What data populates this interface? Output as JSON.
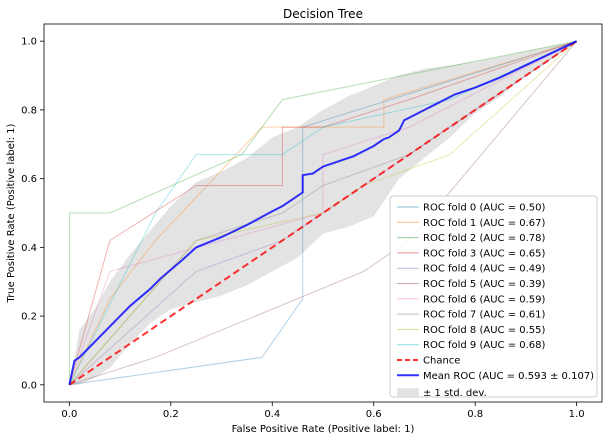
{
  "chart_data": {
    "type": "line",
    "title": "Decision Tree",
    "xlabel": "False Positive Rate (Positive label: 1)",
    "ylabel": "True Positive Rate (Positive label: 1)",
    "xlim": [
      -0.05,
      1.05
    ],
    "ylim": [
      -0.05,
      1.05
    ],
    "xticks": [
      "0.0",
      "0.2",
      "0.4",
      "0.6",
      "0.8",
      "1.0"
    ],
    "yticks": [
      "0.0",
      "0.2",
      "0.4",
      "0.6",
      "0.8",
      "1.0"
    ],
    "grid": false,
    "legend_position": "lower-right",
    "series": [
      {
        "name": "ROC fold 0 (AUC = 0.50)",
        "color": "#1f77b4",
        "x": [
          0,
          0.38,
          0.46,
          0.46,
          1
        ],
        "y": [
          0,
          0.08,
          0.25,
          0.75,
          1
        ]
      },
      {
        "name": "ROC fold 1 (AUC = 0.67)",
        "color": "#ff7f0e",
        "x": [
          0,
          0.08,
          0.17,
          0.38,
          0.62,
          0.62,
          1
        ],
        "y": [
          0,
          0.25,
          0.42,
          0.75,
          0.75,
          0.83,
          1
        ]
      },
      {
        "name": "ROC fold 2 (AUC = 0.78)",
        "color": "#2ca02c",
        "x": [
          0,
          0,
          0.08,
          0.34,
          0.42,
          1
        ],
        "y": [
          0,
          0.5,
          0.5,
          0.67,
          0.83,
          1
        ]
      },
      {
        "name": "ROC fold 3 (AUC = 0.65)",
        "color": "#d62728",
        "x": [
          0,
          0.08,
          0.25,
          0.42,
          0.42,
          0.5,
          0.67,
          1
        ],
        "y": [
          0,
          0.42,
          0.58,
          0.58,
          0.75,
          0.75,
          0.83,
          1
        ]
      },
      {
        "name": "ROC fold 4 (AUC = 0.49)",
        "color": "#9467bd",
        "x": [
          0,
          0.25,
          0.42,
          0.5,
          0.67,
          1
        ],
        "y": [
          0,
          0.33,
          0.42,
          0.5,
          0.67,
          1
        ]
      },
      {
        "name": "ROC fold 5 (AUC = 0.39)",
        "color": "#8c564b",
        "x": [
          0,
          0.17,
          0.58,
          0.67,
          1
        ],
        "y": [
          0,
          0.08,
          0.33,
          0.42,
          1
        ]
      },
      {
        "name": "ROC fold 6 (AUC = 0.59)",
        "color": "#e377c2",
        "x": [
          0,
          0.08,
          0.5,
          0.5,
          0.67,
          1
        ],
        "y": [
          0,
          0.33,
          0.5,
          0.67,
          0.75,
          1
        ]
      },
      {
        "name": "ROC fold 7 (AUC = 0.61)",
        "color": "#7f7f7f",
        "x": [
          0,
          0.25,
          0.42,
          0.5,
          0.67,
          1
        ],
        "y": [
          0,
          0.42,
          0.5,
          0.58,
          0.67,
          1
        ]
      },
      {
        "name": "ROC fold 8 (AUC = 0.55)",
        "color": "#bcbd22",
        "x": [
          0,
          0.25,
          0.5,
          0.58,
          0.75,
          1
        ],
        "y": [
          0,
          0.42,
          0.5,
          0.58,
          0.67,
          1
        ]
      },
      {
        "name": "ROC fold 9 (AUC = 0.68)",
        "color": "#17becf",
        "x": [
          0,
          0.17,
          0.25,
          0.42,
          0.5,
          0.75,
          1
        ],
        "y": [
          0,
          0.5,
          0.67,
          0.67,
          0.75,
          0.83,
          1
        ]
      }
    ],
    "chance": {
      "name": "Chance",
      "color": "#ff0000",
      "x": [
        0,
        1
      ],
      "y": [
        0,
        1
      ]
    },
    "mean": {
      "name": "Mean ROC (AUC = 0.593 ± 0.107)",
      "color": "#0000ff",
      "x": [
        0,
        0.01,
        0.02,
        0.04,
        0.06,
        0.08,
        0.1,
        0.12,
        0.14,
        0.16,
        0.18,
        0.2,
        0.22,
        0.25,
        0.3,
        0.35,
        0.4,
        0.42,
        0.44,
        0.46,
        0.46,
        0.48,
        0.5,
        0.52,
        0.54,
        0.56,
        0.58,
        0.6,
        0.62,
        0.63,
        0.65,
        0.66,
        0.68,
        0.7,
        0.72,
        0.74,
        0.76,
        0.8,
        0.85,
        0.9,
        0.95,
        1.0
      ],
      "y": [
        0,
        0.07,
        0.08,
        0.11,
        0.14,
        0.17,
        0.2,
        0.23,
        0.255,
        0.28,
        0.31,
        0.335,
        0.36,
        0.4,
        0.43,
        0.465,
        0.505,
        0.52,
        0.54,
        0.56,
        0.61,
        0.615,
        0.635,
        0.645,
        0.655,
        0.665,
        0.68,
        0.695,
        0.715,
        0.72,
        0.74,
        0.77,
        0.785,
        0.8,
        0.815,
        0.83,
        0.845,
        0.865,
        0.895,
        0.93,
        0.965,
        1.0
      ]
    },
    "std_band": {
      "name": "± 1 std. dev.",
      "color": "#b0b0b0",
      "x": [
        0,
        0.02,
        0.05,
        0.08,
        0.12,
        0.16,
        0.2,
        0.25,
        0.3,
        0.35,
        0.4,
        0.45,
        0.5,
        0.55,
        0.6,
        0.65,
        0.7,
        0.75,
        0.8,
        0.85,
        0.9,
        0.95,
        1.0
      ],
      "upper": [
        0,
        0.16,
        0.22,
        0.3,
        0.38,
        0.45,
        0.52,
        0.59,
        0.62,
        0.66,
        0.72,
        0.75,
        0.8,
        0.84,
        0.87,
        0.9,
        0.92,
        0.93,
        0.94,
        0.955,
        0.97,
        0.985,
        1.0
      ],
      "lower": [
        0,
        0.0,
        0.02,
        0.05,
        0.12,
        0.18,
        0.22,
        0.24,
        0.26,
        0.29,
        0.33,
        0.37,
        0.44,
        0.46,
        0.49,
        0.6,
        0.66,
        0.72,
        0.79,
        0.84,
        0.9,
        0.95,
        1.0
      ]
    }
  }
}
